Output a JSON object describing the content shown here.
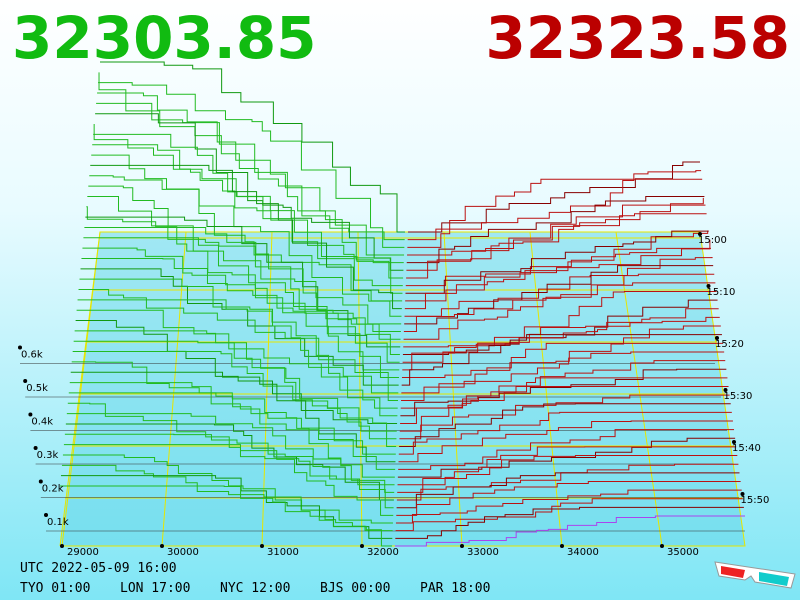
{
  "header": {
    "bid": "32303.85",
    "ask": "32323.58"
  },
  "depth_labels": [
    "0.1k",
    "0.2k",
    "0.3k",
    "0.4k",
    "0.5k",
    "0.6k"
  ],
  "price_labels": [
    "29000",
    "30000",
    "31000",
    "32000",
    "33000",
    "34000",
    "35000"
  ],
  "time_labels": [
    "15:00",
    "15:10",
    "15:20",
    "15:30",
    "15:40",
    "15:50"
  ],
  "footer": {
    "utc": "UTC 2022-05-09 16:00",
    "zones": [
      "TYO 01:00",
      "LON 17:00",
      "NYC 12:00",
      "BJS 00:00",
      "PAR 18:00"
    ]
  }
}
